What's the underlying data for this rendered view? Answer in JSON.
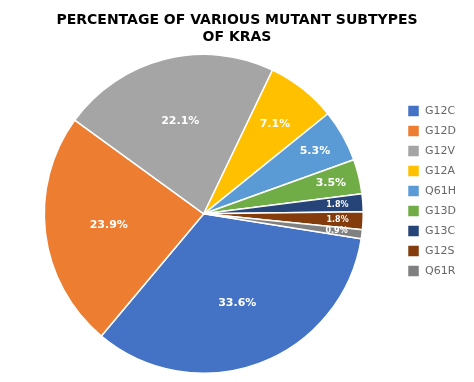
{
  "chart_data": {
    "type": "pie",
    "title": "PERCENTAGE OF VARIOUS MUTANT SUBTYPES\nOF KRAS",
    "categories": [
      "G12C",
      "G12D",
      "G12V",
      "G12A",
      "Q61H",
      "G13D",
      "G13C",
      "G12S",
      "Q61R"
    ],
    "values": [
      33.6,
      23.9,
      22.1,
      7.1,
      5.3,
      3.5,
      1.8,
      1.8,
      0.9
    ],
    "value_labels": [
      "33.6%",
      "23.9%",
      "22.1%",
      "7.1%",
      "5.3%",
      "3.5%",
      "1.8%",
      "1.8%",
      "0.9%"
    ],
    "colors": [
      "#4472C4",
      "#ED7D31",
      "#A5A5A5",
      "#FFC000",
      "#5B9BD5",
      "#70AD47",
      "#264478",
      "#843C0C",
      "#808080"
    ],
    "data_labels": true,
    "legend": "right"
  }
}
